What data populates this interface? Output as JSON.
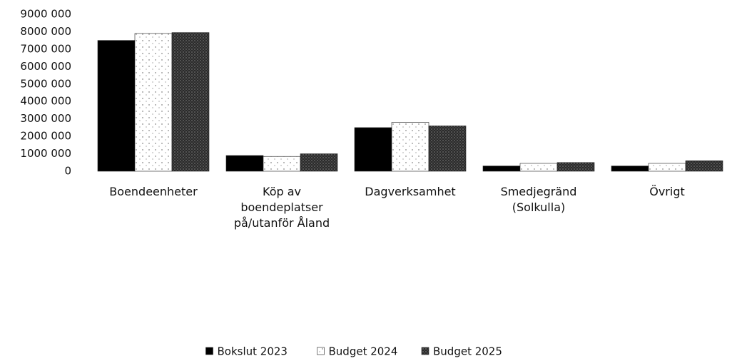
{
  "chart_data": {
    "type": "bar",
    "categories": [
      "Boendeenheter",
      "Köp av boendeplatser på/utanför Åland",
      "Dagverksamhet",
      "Smedjegränd (Solkulla)",
      "Övrigt"
    ],
    "series": [
      {
        "name": "Bokslut 2023",
        "color": "#000000",
        "pattern": "solid",
        "values": [
          7500000,
          900000,
          2500000,
          300000,
          300000
        ]
      },
      {
        "name": "Budget 2024",
        "color": "#ffffff",
        "pattern": "sparse-dots",
        "values": [
          7900000,
          850000,
          2800000,
          450000,
          450000
        ]
      },
      {
        "name": "Budget 2025",
        "color": "#2a2a2a",
        "pattern": "dense-dots",
        "values": [
          7950000,
          1000000,
          2600000,
          500000,
          600000
        ]
      }
    ],
    "ylim": [
      0,
      9000000
    ],
    "yticks": [
      {
        "value": 0,
        "label": "0"
      },
      {
        "value": 1000000,
        "label": "1000 000"
      },
      {
        "value": 2000000,
        "label": "2000 000"
      },
      {
        "value": 3000000,
        "label": "3000 000"
      },
      {
        "value": 4000000,
        "label": "4000 000"
      },
      {
        "value": 5000000,
        "label": "5000 000"
      },
      {
        "value": 6000000,
        "label": "6000 000"
      },
      {
        "value": 7000000,
        "label": "7000 000"
      },
      {
        "value": 8000000,
        "label": "8000 000"
      },
      {
        "value": 9000000,
        "label": "9000 000"
      }
    ],
    "grid": false,
    "legend": "bottom"
  }
}
